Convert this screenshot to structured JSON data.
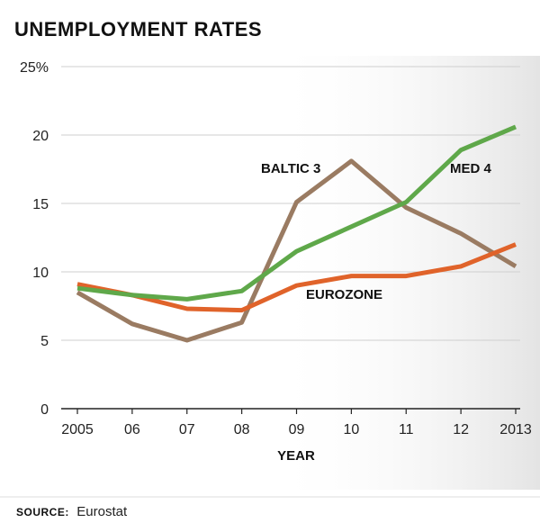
{
  "chart_data": {
    "type": "line",
    "title": "UNEMPLOYMENT RATES",
    "xlabel": "YEAR",
    "ylabel": "",
    "categories": [
      "2005",
      "06",
      "07",
      "08",
      "09",
      "10",
      "11",
      "12",
      "2013"
    ],
    "y_ticks": [
      "0",
      "5",
      "10",
      "15",
      "20",
      "25%"
    ],
    "ylim": [
      0,
      25
    ],
    "grid": true,
    "series": [
      {
        "name": "BALTIC 3",
        "color": "#9a7b62",
        "values": [
          8.5,
          6.2,
          5.0,
          6.3,
          15.1,
          18.1,
          14.7,
          12.8,
          10.4
        ]
      },
      {
        "name": "EUROZONE",
        "color": "#e0632a",
        "values": [
          9.1,
          8.3,
          7.3,
          7.2,
          9.0,
          9.7,
          9.7,
          10.4,
          12.0
        ]
      },
      {
        "name": "MED 4",
        "color": "#5fa84a",
        "values": [
          8.8,
          8.3,
          8.0,
          8.6,
          11.5,
          13.3,
          15.1,
          18.9,
          20.6
        ]
      }
    ]
  },
  "source": {
    "label": "SOURCE:",
    "text": "Eurostat"
  }
}
